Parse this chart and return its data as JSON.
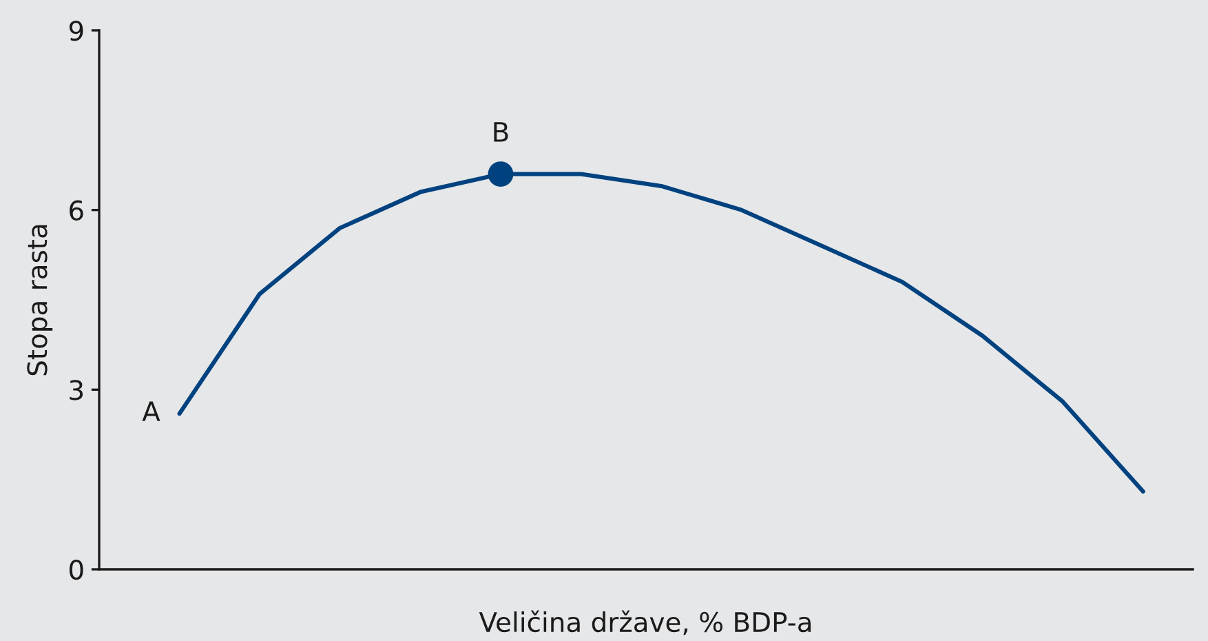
{
  "chart_data": {
    "type": "line",
    "xlabel": "Veličina države, % BDP-a",
    "ylabel": "Stopa rasta",
    "categories": [
      null,
      null,
      null,
      null,
      null,
      null,
      null,
      null,
      null,
      null,
      null,
      null,
      null
    ],
    "series": [
      {
        "color": "#00427f",
        "values": [
          2.6,
          4.6,
          5.7,
          6.3,
          6.6,
          6.6,
          6.4,
          6.0,
          5.4,
          4.8,
          3.9,
          2.8,
          1.3
        ]
      },
      {
        "type": "scatter",
        "name": "B",
        "color": "#00427f",
        "marker": "circle",
        "values": [
          null,
          null,
          null,
          null,
          6.6,
          null,
          null,
          null,
          null,
          null,
          null,
          null,
          null
        ]
      }
    ],
    "annotations": [
      "A"
    ],
    "ylim": [
      0,
      9
    ],
    "yticks": [
      0,
      3,
      6,
      9
    ],
    "grid": false,
    "legend": false,
    "tick_labels": "y"
  }
}
